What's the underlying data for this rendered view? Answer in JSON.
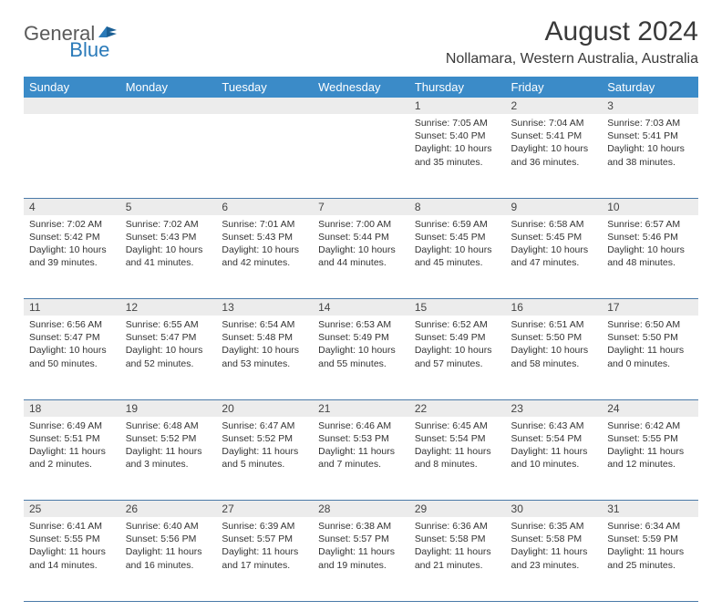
{
  "logo": {
    "part1": "General",
    "part2": "Blue"
  },
  "title": "August 2024",
  "location": "Nollamara, Western Australia, Australia",
  "colors": {
    "header_bg": "#3b8bc8",
    "header_fg": "#ffffff",
    "daynum_bg": "#ececec",
    "row_border": "#4a7aa8",
    "text": "#333333",
    "logo_gray": "#5a5a5a",
    "logo_blue": "#2a7ab9"
  },
  "weekdays": [
    "Sunday",
    "Monday",
    "Tuesday",
    "Wednesday",
    "Thursday",
    "Friday",
    "Saturday"
  ],
  "weeks": [
    {
      "nums": [
        "",
        "",
        "",
        "",
        "1",
        "2",
        "3"
      ],
      "cells": [
        null,
        null,
        null,
        null,
        {
          "sunrise": "7:05 AM",
          "sunset": "5:40 PM",
          "daylight1": "Daylight: 10 hours",
          "daylight2": "and 35 minutes."
        },
        {
          "sunrise": "7:04 AM",
          "sunset": "5:41 PM",
          "daylight1": "Daylight: 10 hours",
          "daylight2": "and 36 minutes."
        },
        {
          "sunrise": "7:03 AM",
          "sunset": "5:41 PM",
          "daylight1": "Daylight: 10 hours",
          "daylight2": "and 38 minutes."
        }
      ]
    },
    {
      "nums": [
        "4",
        "5",
        "6",
        "7",
        "8",
        "9",
        "10"
      ],
      "cells": [
        {
          "sunrise": "7:02 AM",
          "sunset": "5:42 PM",
          "daylight1": "Daylight: 10 hours",
          "daylight2": "and 39 minutes."
        },
        {
          "sunrise": "7:02 AM",
          "sunset": "5:43 PM",
          "daylight1": "Daylight: 10 hours",
          "daylight2": "and 41 minutes."
        },
        {
          "sunrise": "7:01 AM",
          "sunset": "5:43 PM",
          "daylight1": "Daylight: 10 hours",
          "daylight2": "and 42 minutes."
        },
        {
          "sunrise": "7:00 AM",
          "sunset": "5:44 PM",
          "daylight1": "Daylight: 10 hours",
          "daylight2": "and 44 minutes."
        },
        {
          "sunrise": "6:59 AM",
          "sunset": "5:45 PM",
          "daylight1": "Daylight: 10 hours",
          "daylight2": "and 45 minutes."
        },
        {
          "sunrise": "6:58 AM",
          "sunset": "5:45 PM",
          "daylight1": "Daylight: 10 hours",
          "daylight2": "and 47 minutes."
        },
        {
          "sunrise": "6:57 AM",
          "sunset": "5:46 PM",
          "daylight1": "Daylight: 10 hours",
          "daylight2": "and 48 minutes."
        }
      ]
    },
    {
      "nums": [
        "11",
        "12",
        "13",
        "14",
        "15",
        "16",
        "17"
      ],
      "cells": [
        {
          "sunrise": "6:56 AM",
          "sunset": "5:47 PM",
          "daylight1": "Daylight: 10 hours",
          "daylight2": "and 50 minutes."
        },
        {
          "sunrise": "6:55 AM",
          "sunset": "5:47 PM",
          "daylight1": "Daylight: 10 hours",
          "daylight2": "and 52 minutes."
        },
        {
          "sunrise": "6:54 AM",
          "sunset": "5:48 PM",
          "daylight1": "Daylight: 10 hours",
          "daylight2": "and 53 minutes."
        },
        {
          "sunrise": "6:53 AM",
          "sunset": "5:49 PM",
          "daylight1": "Daylight: 10 hours",
          "daylight2": "and 55 minutes."
        },
        {
          "sunrise": "6:52 AM",
          "sunset": "5:49 PM",
          "daylight1": "Daylight: 10 hours",
          "daylight2": "and 57 minutes."
        },
        {
          "sunrise": "6:51 AM",
          "sunset": "5:50 PM",
          "daylight1": "Daylight: 10 hours",
          "daylight2": "and 58 minutes."
        },
        {
          "sunrise": "6:50 AM",
          "sunset": "5:50 PM",
          "daylight1": "Daylight: 11 hours",
          "daylight2": "and 0 minutes."
        }
      ]
    },
    {
      "nums": [
        "18",
        "19",
        "20",
        "21",
        "22",
        "23",
        "24"
      ],
      "cells": [
        {
          "sunrise": "6:49 AM",
          "sunset": "5:51 PM",
          "daylight1": "Daylight: 11 hours",
          "daylight2": "and 2 minutes."
        },
        {
          "sunrise": "6:48 AM",
          "sunset": "5:52 PM",
          "daylight1": "Daylight: 11 hours",
          "daylight2": "and 3 minutes."
        },
        {
          "sunrise": "6:47 AM",
          "sunset": "5:52 PM",
          "daylight1": "Daylight: 11 hours",
          "daylight2": "and 5 minutes."
        },
        {
          "sunrise": "6:46 AM",
          "sunset": "5:53 PM",
          "daylight1": "Daylight: 11 hours",
          "daylight2": "and 7 minutes."
        },
        {
          "sunrise": "6:45 AM",
          "sunset": "5:54 PM",
          "daylight1": "Daylight: 11 hours",
          "daylight2": "and 8 minutes."
        },
        {
          "sunrise": "6:43 AM",
          "sunset": "5:54 PM",
          "daylight1": "Daylight: 11 hours",
          "daylight2": "and 10 minutes."
        },
        {
          "sunrise": "6:42 AM",
          "sunset": "5:55 PM",
          "daylight1": "Daylight: 11 hours",
          "daylight2": "and 12 minutes."
        }
      ]
    },
    {
      "nums": [
        "25",
        "26",
        "27",
        "28",
        "29",
        "30",
        "31"
      ],
      "cells": [
        {
          "sunrise": "6:41 AM",
          "sunset": "5:55 PM",
          "daylight1": "Daylight: 11 hours",
          "daylight2": "and 14 minutes."
        },
        {
          "sunrise": "6:40 AM",
          "sunset": "5:56 PM",
          "daylight1": "Daylight: 11 hours",
          "daylight2": "and 16 minutes."
        },
        {
          "sunrise": "6:39 AM",
          "sunset": "5:57 PM",
          "daylight1": "Daylight: 11 hours",
          "daylight2": "and 17 minutes."
        },
        {
          "sunrise": "6:38 AM",
          "sunset": "5:57 PM",
          "daylight1": "Daylight: 11 hours",
          "daylight2": "and 19 minutes."
        },
        {
          "sunrise": "6:36 AM",
          "sunset": "5:58 PM",
          "daylight1": "Daylight: 11 hours",
          "daylight2": "and 21 minutes."
        },
        {
          "sunrise": "6:35 AM",
          "sunset": "5:58 PM",
          "daylight1": "Daylight: 11 hours",
          "daylight2": "and 23 minutes."
        },
        {
          "sunrise": "6:34 AM",
          "sunset": "5:59 PM",
          "daylight1": "Daylight: 11 hours",
          "daylight2": "and 25 minutes."
        }
      ]
    }
  ]
}
